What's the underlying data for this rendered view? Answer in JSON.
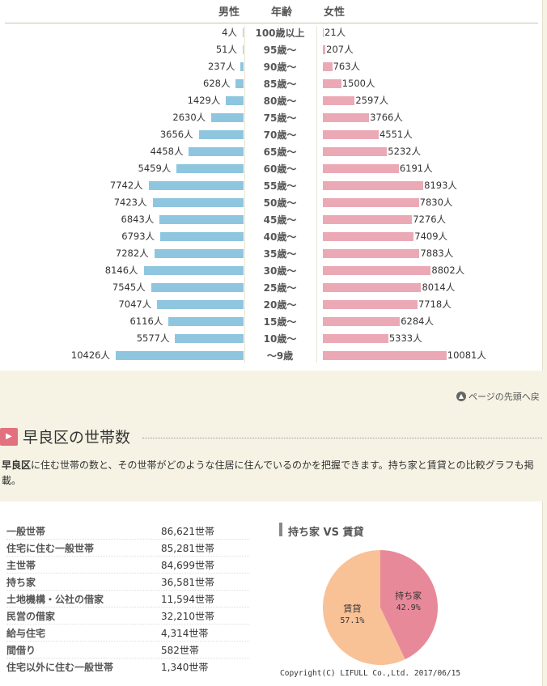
{
  "pyramid": {
    "header_male": "男性",
    "header_age": "年齢",
    "header_female": "女性",
    "rows": [
      {
        "age": "100歳以上",
        "male": 4,
        "female": 21,
        "male_label": "4人",
        "female_label": "21人"
      },
      {
        "age": "95歳～",
        "male": 51,
        "female": 207,
        "male_label": "51人",
        "female_label": "207人"
      },
      {
        "age": "90歳～",
        "male": 237,
        "female": 763,
        "male_label": "237人",
        "female_label": "763人"
      },
      {
        "age": "85歳～",
        "male": 628,
        "female": 1500,
        "male_label": "628人",
        "female_label": "1500人"
      },
      {
        "age": "80歳～",
        "male": 1429,
        "female": 2597,
        "male_label": "1429人",
        "female_label": "2597人"
      },
      {
        "age": "75歳～",
        "male": 2630,
        "female": 3766,
        "male_label": "2630人",
        "female_label": "3766人"
      },
      {
        "age": "70歳～",
        "male": 3656,
        "female": 4551,
        "male_label": "3656人",
        "female_label": "4551人"
      },
      {
        "age": "65歳～",
        "male": 4458,
        "female": 5232,
        "male_label": "4458人",
        "female_label": "5232人"
      },
      {
        "age": "60歳～",
        "male": 5459,
        "female": 6191,
        "male_label": "5459人",
        "female_label": "6191人"
      },
      {
        "age": "55歳～",
        "male": 7742,
        "female": 8193,
        "male_label": "7742人",
        "female_label": "8193人"
      },
      {
        "age": "50歳～",
        "male": 7423,
        "female": 7830,
        "male_label": "7423人",
        "female_label": "7830人"
      },
      {
        "age": "45歳～",
        "male": 6843,
        "female": 7276,
        "male_label": "6843人",
        "female_label": "7276人"
      },
      {
        "age": "40歳～",
        "male": 6793,
        "female": 7409,
        "male_label": "6793人",
        "female_label": "7409人"
      },
      {
        "age": "35歳～",
        "male": 7282,
        "female": 7883,
        "male_label": "7282人",
        "female_label": "7883人"
      },
      {
        "age": "30歳～",
        "male": 8146,
        "female": 8802,
        "male_label": "8146人",
        "female_label": "8802人"
      },
      {
        "age": "25歳～",
        "male": 7545,
        "female": 8014,
        "male_label": "7545人",
        "female_label": "8014人"
      },
      {
        "age": "20歳～",
        "male": 7047,
        "female": 7718,
        "male_label": "7047人",
        "female_label": "7718人"
      },
      {
        "age": "15歳～",
        "male": 6116,
        "female": 6284,
        "male_label": "6116人",
        "female_label": "6284人"
      },
      {
        "age": "10歳～",
        "male": 5577,
        "female": 5333,
        "male_label": "5577人",
        "female_label": "5333人"
      },
      {
        "age": "～9歳",
        "male": 10426,
        "female": 10081,
        "male_label": "10426人",
        "female_label": "10081人"
      }
    ],
    "male_color": "#8ec6df",
    "female_color": "#eba9b5"
  },
  "nav": {
    "back_to_top": "ページの先頭へ戻",
    "back_icon": "up-arrow-circle-icon"
  },
  "household_section": {
    "title": "早良区の世帯数",
    "desc_strong": "早良区",
    "desc_text": "に住む世帯の数と、その世帯がどのような住居に住んでいるのかを把握できます。持ち家と賃貸との比較グラフも掲載。",
    "rows": [
      {
        "label": "一般世帯",
        "value": "86,621世帯"
      },
      {
        "label": "住宅に住む一般世帯",
        "value": "85,281世帯"
      },
      {
        "label": "主世帯",
        "value": "84,699世帯"
      },
      {
        "label": "持ち家",
        "value": "36,581世帯"
      },
      {
        "label": "土地機構・公社の借家",
        "value": "11,594世帯"
      },
      {
        "label": "民営の借家",
        "value": "32,210世帯"
      },
      {
        "label": "給与住宅",
        "value": "4,314世帯"
      },
      {
        "label": "間借り",
        "value": "582世帯"
      },
      {
        "label": "住宅以外に住む一般世帯",
        "value": "1,340世帯"
      }
    ]
  },
  "chart_data": {
    "type": "pie",
    "title": "持ち家 VS 賃貸",
    "slices": [
      {
        "name": "持ち家",
        "value": 42.9,
        "label": "42.9%",
        "color": "#e8899a"
      },
      {
        "name": "賃貸",
        "value": 57.1,
        "label": "57.1%",
        "color": "#f8c196"
      }
    ]
  },
  "copyright": "Copyright(C) LIFULL Co.,Ltd.  2017/06/15"
}
